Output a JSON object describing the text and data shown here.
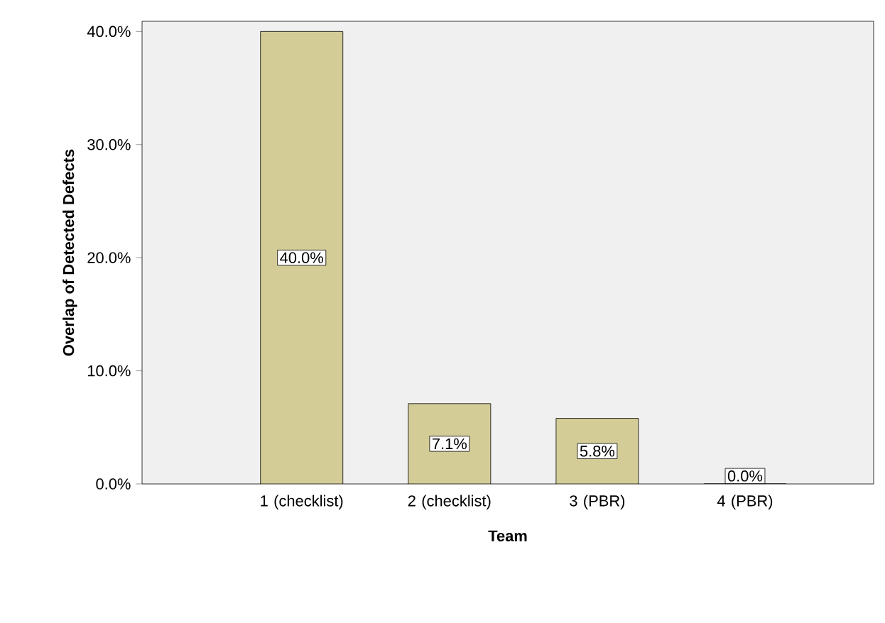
{
  "chart_data": {
    "type": "bar",
    "xlabel": "Team",
    "ylabel": "Overlap of Detected Defects",
    "categories": [
      "1 (checklist)",
      "2 (checklist)",
      "3 (PBR)",
      "4 (PBR)"
    ],
    "values": [
      40.0,
      7.1,
      5.8,
      0.0
    ],
    "value_labels": [
      "40.0%",
      "7.1%",
      "5.8%",
      "0.0%"
    ],
    "color": "#d3cc96",
    "ylim": [
      0,
      40.9
    ],
    "yticks": [
      {
        "value": 0,
        "label": "0.0%"
      },
      {
        "value": 10,
        "label": "10.0%"
      },
      {
        "value": 20,
        "label": "20.0%"
      },
      {
        "value": 30,
        "label": "30.0%"
      },
      {
        "value": 40,
        "label": "40.0%"
      }
    ]
  }
}
